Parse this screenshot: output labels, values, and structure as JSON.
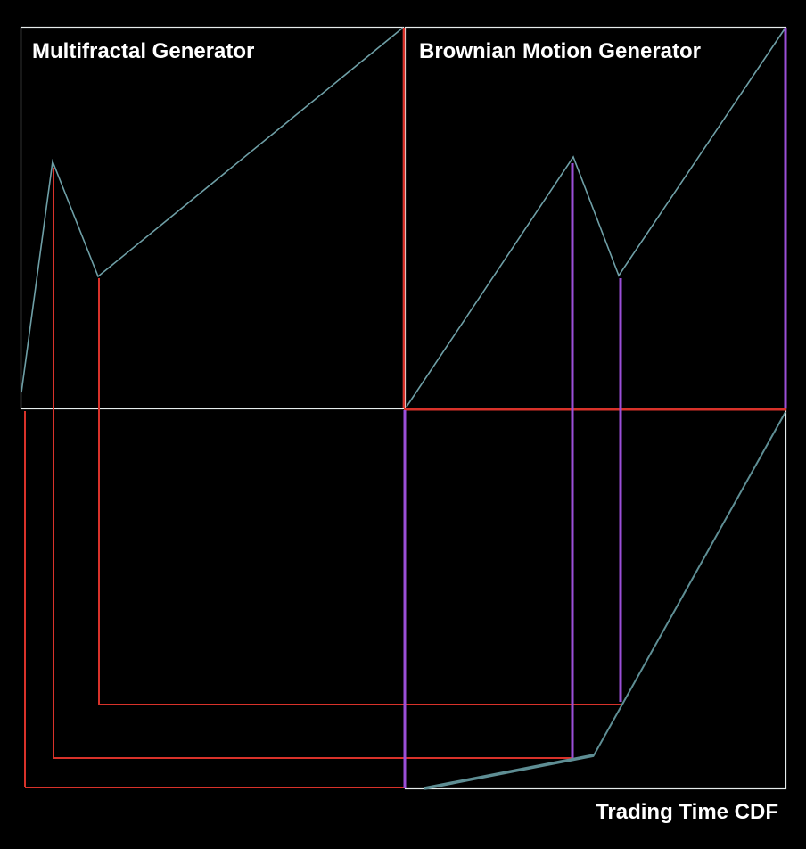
{
  "titles": {
    "multifractal": "Multifractal Generator",
    "brownian": "Brownian Motion Generator",
    "trading_time": "Trading Time CDF"
  },
  "colors": {
    "background": "#000000",
    "panel_border": "#e6ecec",
    "generator_line": "#6e9fa6",
    "cdf_line": "#5e8e94",
    "red_projection": "#d8322a",
    "purple_projection": "#9b4fd8",
    "text": "#ffffff"
  }
}
